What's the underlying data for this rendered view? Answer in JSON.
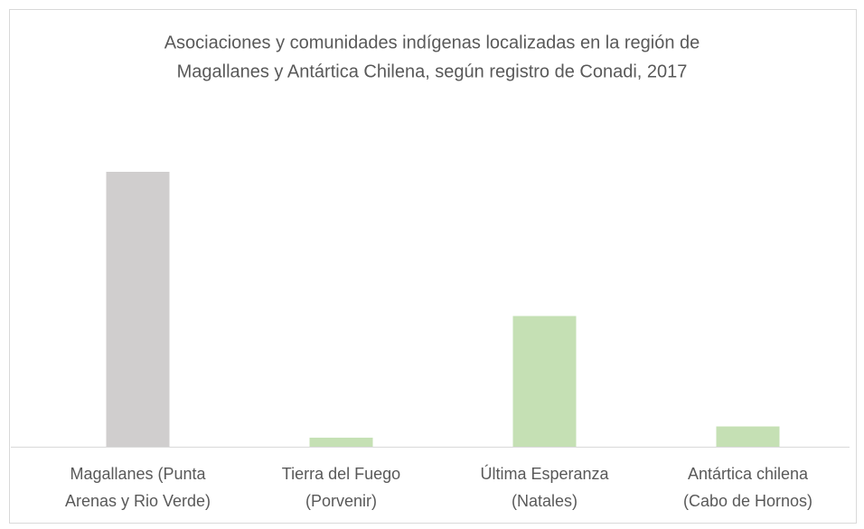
{
  "chart_data": {
    "type": "bar",
    "title": [
      "Asociaciones y comunidades indígenas localizadas en la región de",
      "Magallanes y Antártica Chilena, según registro de Conadi, 2017"
    ],
    "categories": [
      [
        "Magallanes (Punta",
        "Arenas y Rio Verde)"
      ],
      [
        "Tierra del Fuego",
        "(Porvenir)"
      ],
      [
        "Última Esperanza",
        "(Natales)"
      ],
      [
        "Antártica chilena",
        "(Cabo de Hornos)"
      ]
    ],
    "values": [
      61,
      2,
      29,
      4.5
    ],
    "colors": [
      "#d0cece",
      "#c5e0b4",
      "#c5e0b4",
      "#c5e0b4"
    ]
  }
}
